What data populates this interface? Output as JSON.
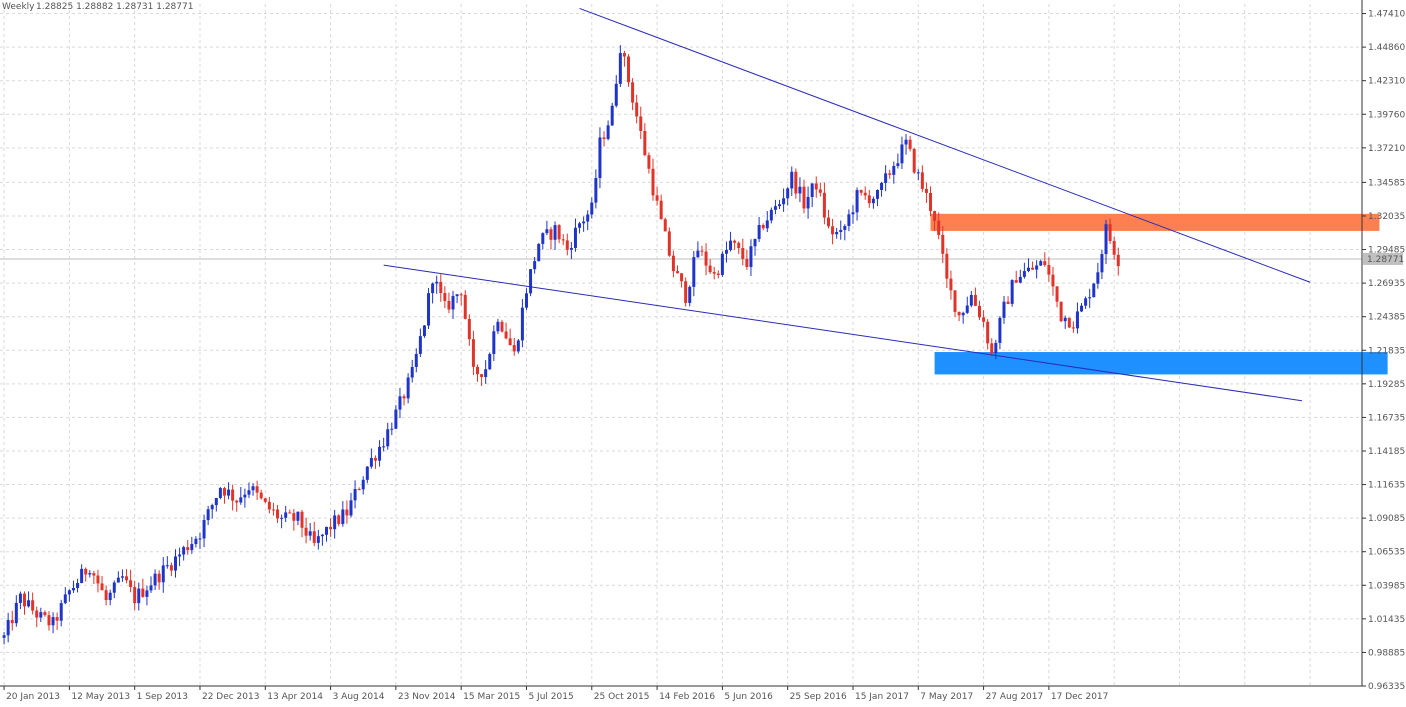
{
  "header": {
    "period": "Weekly",
    "ohlc": "1.28825 1.28882 1.28731 1.28771"
  },
  "chart_data": {
    "type": "candlestick",
    "y_axis_ticks": [
      "1.47410",
      "1.44860",
      "1.42310",
      "1.39760",
      "1.37210",
      "1.34585",
      "1.32035",
      "1.29485",
      "1.26935",
      "1.24385",
      "1.21835",
      "1.19285",
      "1.16735",
      "1.14185",
      "1.11635",
      "1.09085",
      "1.06535",
      "1.03985",
      "1.01435",
      "0.98885",
      "0.96335"
    ],
    "ylim": [
      0.96335,
      1.48135
    ],
    "x_axis_labels": [
      "20 Jan 2013",
      "12 May 2013",
      "1 Sep 2013",
      "22 Dec 2013",
      "13 Apr 2014",
      "3 Aug 2014",
      "23 Nov 2014",
      "15 Mar 2015",
      "5 Jul 2015",
      "25 Oct 2015",
      "14 Feb 2016",
      "5 Jun 2016",
      "25 Sep 2016",
      "15 Jan 2017",
      "7 May 2017",
      "27 Aug 2017",
      "17 Dec 2017"
    ],
    "current_price": "1.28771",
    "colors": {
      "bull": "#1f35c9",
      "bear": "#e0342a",
      "trendline": "#2a2ab8",
      "resistance_zone": "#ff7f50",
      "support_zone": "#1e90ff",
      "price_label_bg": "#c0c0c0"
    },
    "keypoints": [
      [
        "2013-01-20",
        1.0
      ],
      [
        "2013-02-17",
        1.03
      ],
      [
        "2013-03-24",
        1.015
      ],
      [
        "2013-04-14",
        1.01
      ],
      [
        "2013-05-12",
        1.035
      ],
      [
        "2013-06-16",
        1.055
      ],
      [
        "2013-07-14",
        1.028
      ],
      [
        "2013-08-11",
        1.045
      ],
      [
        "2013-09-01",
        1.03
      ],
      [
        "2013-10-06",
        1.045
      ],
      [
        "2013-11-10",
        1.06
      ],
      [
        "2013-12-22",
        1.08
      ],
      [
        "2014-01-26",
        1.115
      ],
      [
        "2014-02-23",
        1.105
      ],
      [
        "2014-03-16",
        1.115
      ],
      [
        "2014-04-13",
        1.1
      ],
      [
        "2014-05-11",
        1.09
      ],
      [
        "2014-06-08",
        1.09
      ],
      [
        "2014-07-06",
        1.07
      ],
      [
        "2014-08-03",
        1.085
      ],
      [
        "2014-08-31",
        1.095
      ],
      [
        "2014-10-05",
        1.13
      ],
      [
        "2014-11-02",
        1.15
      ],
      [
        "2014-11-23",
        1.17
      ],
      [
        "2014-12-21",
        1.2
      ],
      [
        "2015-01-11",
        1.24
      ],
      [
        "2015-01-25",
        1.275
      ],
      [
        "2015-02-15",
        1.25
      ],
      [
        "2015-03-15",
        1.265
      ],
      [
        "2015-04-05",
        1.2
      ],
      [
        "2015-04-26",
        1.205
      ],
      [
        "2015-05-17",
        1.245
      ],
      [
        "2015-06-14",
        1.215
      ],
      [
        "2015-07-05",
        1.265
      ],
      [
        "2015-07-26",
        1.3
      ],
      [
        "2015-08-23",
        1.31
      ],
      [
        "2015-09-13",
        1.295
      ],
      [
        "2015-10-04",
        1.315
      ],
      [
        "2015-10-25",
        1.325
      ],
      [
        "2015-11-08",
        1.375
      ],
      [
        "2015-11-29",
        1.4
      ],
      [
        "2015-12-13",
        1.45
      ],
      [
        "2016-01-03",
        1.41
      ],
      [
        "2016-01-31",
        1.355
      ],
      [
        "2016-02-21",
        1.315
      ],
      [
        "2016-03-13",
        1.28
      ],
      [
        "2016-04-03",
        1.26
      ],
      [
        "2016-04-24",
        1.295
      ],
      [
        "2016-05-22",
        1.275
      ],
      [
        "2016-06-19",
        1.3
      ],
      [
        "2016-07-17",
        1.285
      ],
      [
        "2016-08-14",
        1.315
      ],
      [
        "2016-09-11",
        1.33
      ],
      [
        "2016-10-02",
        1.35
      ],
      [
        "2016-10-23",
        1.33
      ],
      [
        "2016-11-13",
        1.345
      ],
      [
        "2016-12-04",
        1.31
      ],
      [
        "2016-12-25",
        1.305
      ],
      [
        "2017-01-22",
        1.335
      ],
      [
        "2017-02-26",
        1.335
      ],
      [
        "2017-03-26",
        1.36
      ],
      [
        "2017-04-16",
        1.375
      ],
      [
        "2017-05-07",
        1.35
      ],
      [
        "2017-06-04",
        1.32
      ],
      [
        "2017-06-25",
        1.27
      ],
      [
        "2017-07-16",
        1.245
      ],
      [
        "2017-08-06",
        1.26
      ],
      [
        "2017-08-27",
        1.24
      ],
      [
        "2017-09-10",
        1.215
      ],
      [
        "2017-10-01",
        1.25
      ],
      [
        "2017-10-22",
        1.275
      ],
      [
        "2017-11-19",
        1.28
      ],
      [
        "2017-12-10",
        1.285
      ],
      [
        "2018-01-07",
        1.245
      ],
      [
        "2018-01-28",
        1.24
      ],
      [
        "2018-02-18",
        1.255
      ],
      [
        "2018-03-11",
        1.28
      ],
      [
        "2018-03-25",
        1.31
      ],
      [
        "2018-04-15",
        1.2877
      ]
    ],
    "annotations": {
      "upper_trendline": {
        "start": [
          "2015-10-04",
          1.478
        ],
        "end": [
          "2019-03-10",
          1.27
        ]
      },
      "lower_trendline": {
        "start": [
          "2014-11-02",
          1.283
        ],
        "end": [
          "2019-02-24",
          1.18
        ]
      },
      "resistance_zone": {
        "from": "2017-05-28",
        "to": "2019-07-07",
        "y_low": 1.309,
        "y_high": 1.322
      },
      "support_zone": {
        "from": "2017-06-04",
        "to": "2019-07-21",
        "y_low": 1.2,
        "y_high": 1.217
      }
    }
  }
}
